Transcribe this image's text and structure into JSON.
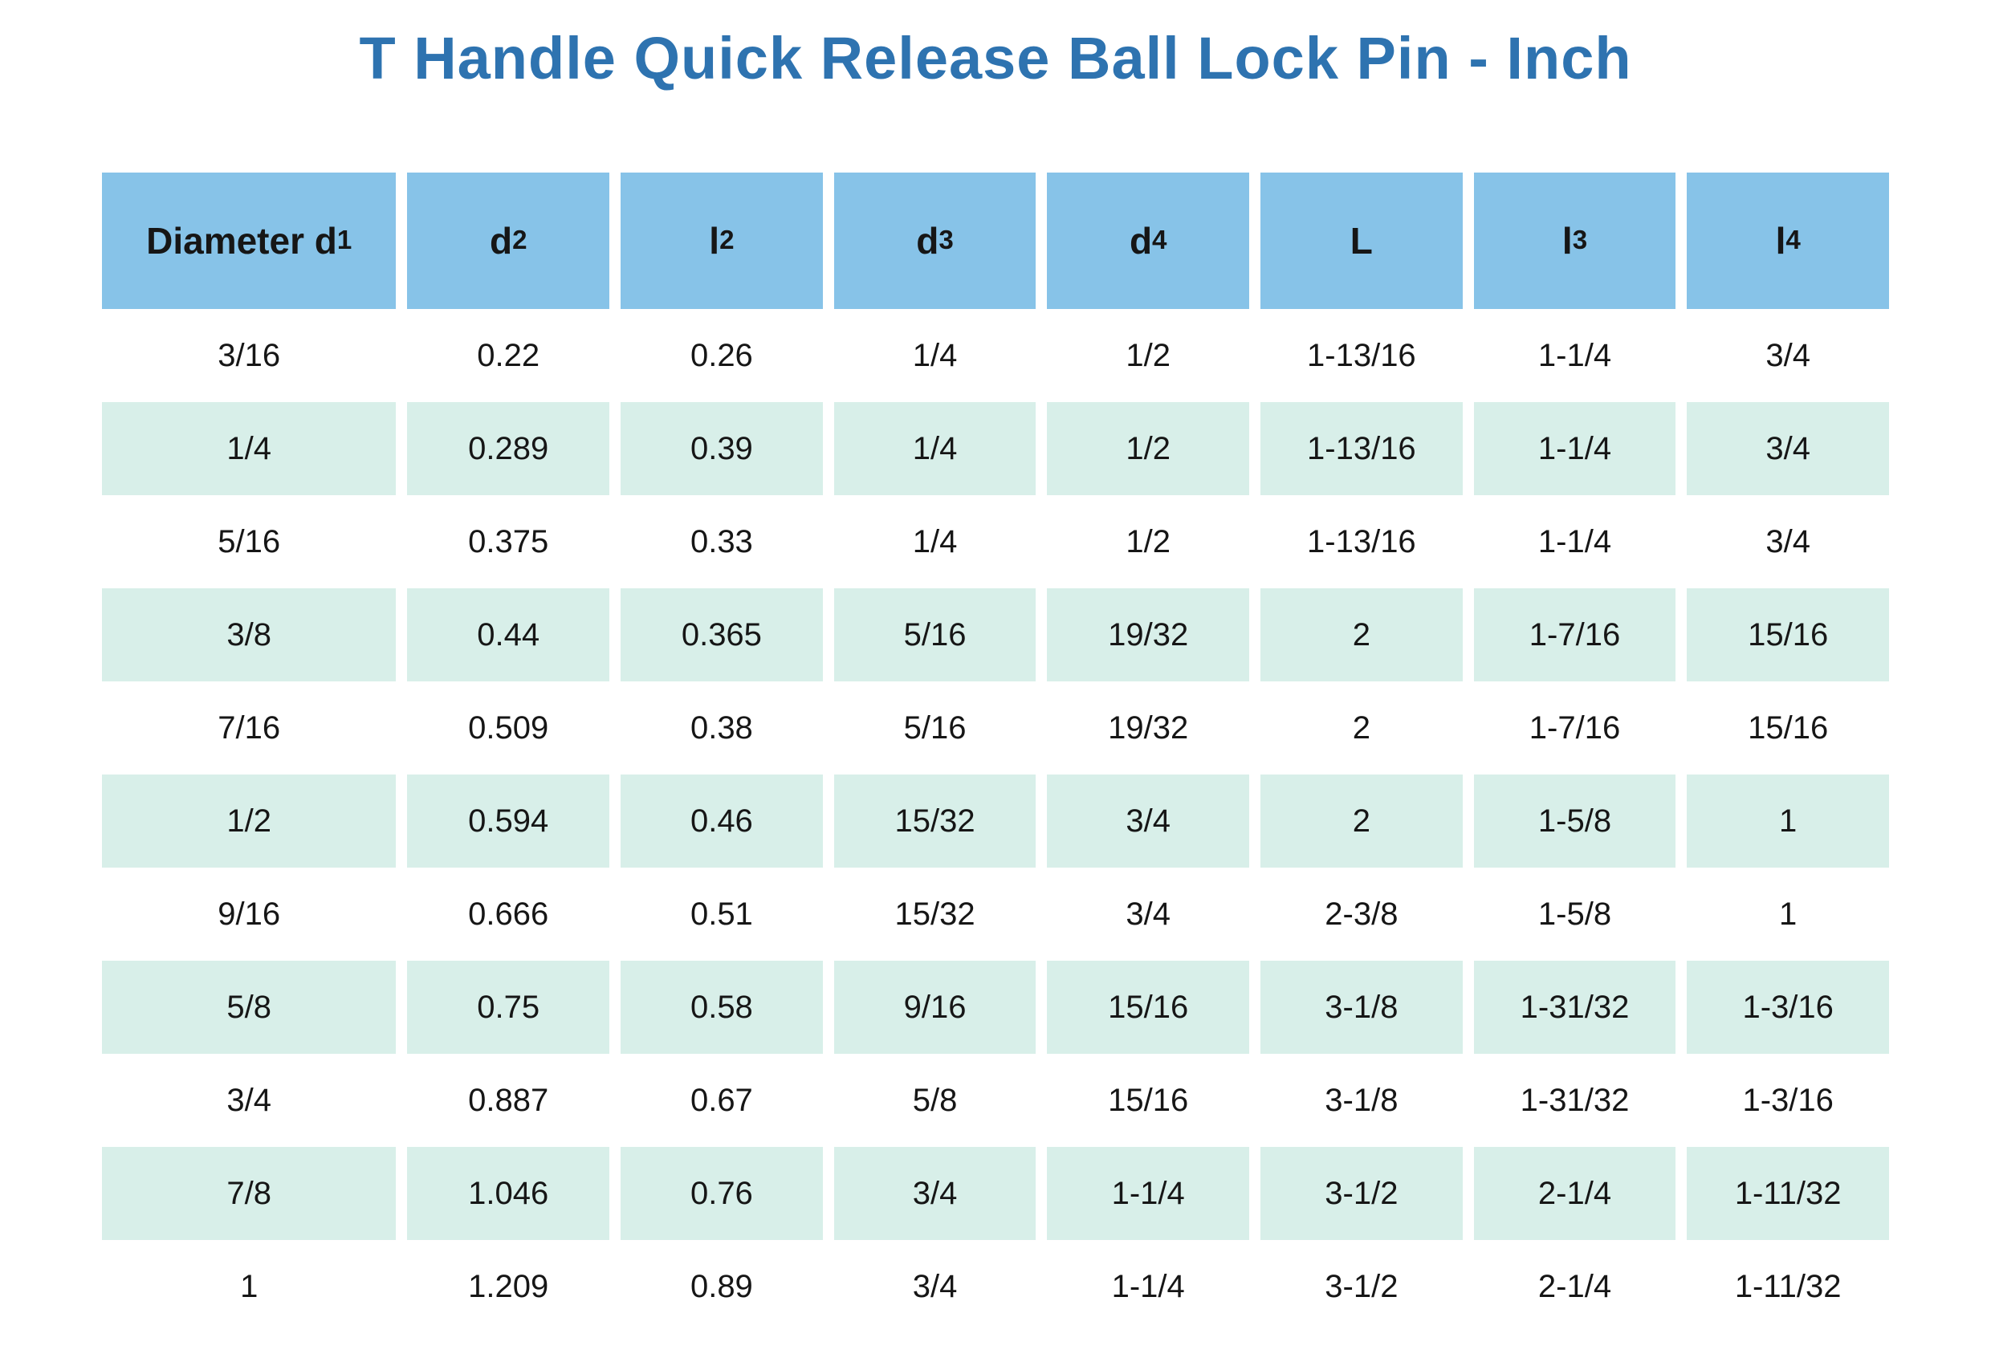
{
  "title": "T Handle Quick Release Ball Lock Pin - Inch",
  "colors": {
    "title": "#2e73b0",
    "header_bg": "#87c3e8",
    "stripe_bg": "#d8efe9",
    "text": "#161616",
    "page_bg": "#ffffff"
  },
  "table": {
    "columns": [
      {
        "label": "Diameter d",
        "sub": "1"
      },
      {
        "label": "d",
        "sub": "2"
      },
      {
        "label": "l",
        "sub": "2"
      },
      {
        "label": "d",
        "sub": "3"
      },
      {
        "label": "d",
        "sub": "4"
      },
      {
        "label": "L",
        "sub": ""
      },
      {
        "label": "l",
        "sub": "3"
      },
      {
        "label": "l",
        "sub": "4"
      }
    ],
    "rows": [
      [
        "3/16",
        "0.22",
        "0.26",
        "1/4",
        "1/2",
        "1-13/16",
        "1-1/4",
        "3/4"
      ],
      [
        "1/4",
        "0.289",
        "0.39",
        "1/4",
        "1/2",
        "1-13/16",
        "1-1/4",
        "3/4"
      ],
      [
        "5/16",
        "0.375",
        "0.33",
        "1/4",
        "1/2",
        "1-13/16",
        "1-1/4",
        "3/4"
      ],
      [
        "3/8",
        "0.44",
        "0.365",
        "5/16",
        "19/32",
        "2",
        "1-7/16",
        "15/16"
      ],
      [
        "7/16",
        "0.509",
        "0.38",
        "5/16",
        "19/32",
        "2",
        "1-7/16",
        "15/16"
      ],
      [
        "1/2",
        "0.594",
        "0.46",
        "15/32",
        "3/4",
        "2",
        "1-5/8",
        "1"
      ],
      [
        "9/16",
        "0.666",
        "0.51",
        "15/32",
        "3/4",
        "2-3/8",
        "1-5/8",
        "1"
      ],
      [
        "5/8",
        "0.75",
        "0.58",
        "9/16",
        "15/16",
        "3-1/8",
        "1-31/32",
        "1-3/16"
      ],
      [
        "3/4",
        "0.887",
        "0.67",
        "5/8",
        "15/16",
        "3-1/8",
        "1-31/32",
        "1-3/16"
      ],
      [
        "7/8",
        "1.046",
        "0.76",
        "3/4",
        "1-1/4",
        "3-1/2",
        "2-1/4",
        "1-11/32"
      ],
      [
        "1",
        "1.209",
        "0.89",
        "3/4",
        "1-1/4",
        "3-1/2",
        "2-1/4",
        "1-11/32"
      ]
    ]
  },
  "chart_data": {
    "type": "table",
    "title": "T Handle Quick Release Ball Lock Pin - Inch",
    "columns": [
      "Diameter d1",
      "d2",
      "l2",
      "d3",
      "d4",
      "L",
      "l3",
      "l4"
    ],
    "rows": [
      [
        "3/16",
        "0.22",
        "0.26",
        "1/4",
        "1/2",
        "1-13/16",
        "1-1/4",
        "3/4"
      ],
      [
        "1/4",
        "0.289",
        "0.39",
        "1/4",
        "1/2",
        "1-13/16",
        "1-1/4",
        "3/4"
      ],
      [
        "5/16",
        "0.375",
        "0.33",
        "1/4",
        "1/2",
        "1-13/16",
        "1-1/4",
        "3/4"
      ],
      [
        "3/8",
        "0.44",
        "0.365",
        "5/16",
        "19/32",
        "2",
        "1-7/16",
        "15/16"
      ],
      [
        "7/16",
        "0.509",
        "0.38",
        "5/16",
        "19/32",
        "2",
        "1-7/16",
        "15/16"
      ],
      [
        "1/2",
        "0.594",
        "0.46",
        "15/32",
        "3/4",
        "2",
        "1-5/8",
        "1"
      ],
      [
        "9/16",
        "0.666",
        "0.51",
        "15/32",
        "3/4",
        "2-3/8",
        "1-5/8",
        "1"
      ],
      [
        "5/8",
        "0.75",
        "0.58",
        "9/16",
        "15/16",
        "3-1/8",
        "1-31/32",
        "1-3/16"
      ],
      [
        "3/4",
        "0.887",
        "0.67",
        "5/8",
        "15/16",
        "3-1/8",
        "1-31/32",
        "1-3/16"
      ],
      [
        "7/8",
        "1.046",
        "0.76",
        "3/4",
        "1-1/4",
        "3-1/2",
        "2-1/4",
        "1-11/32"
      ],
      [
        "1",
        "1.209",
        "0.89",
        "3/4",
        "1-1/4",
        "3-1/2",
        "2-1/4",
        "1-11/32"
      ]
    ],
    "layout": {
      "header_position": "top",
      "striped": true,
      "grid": false
    }
  }
}
